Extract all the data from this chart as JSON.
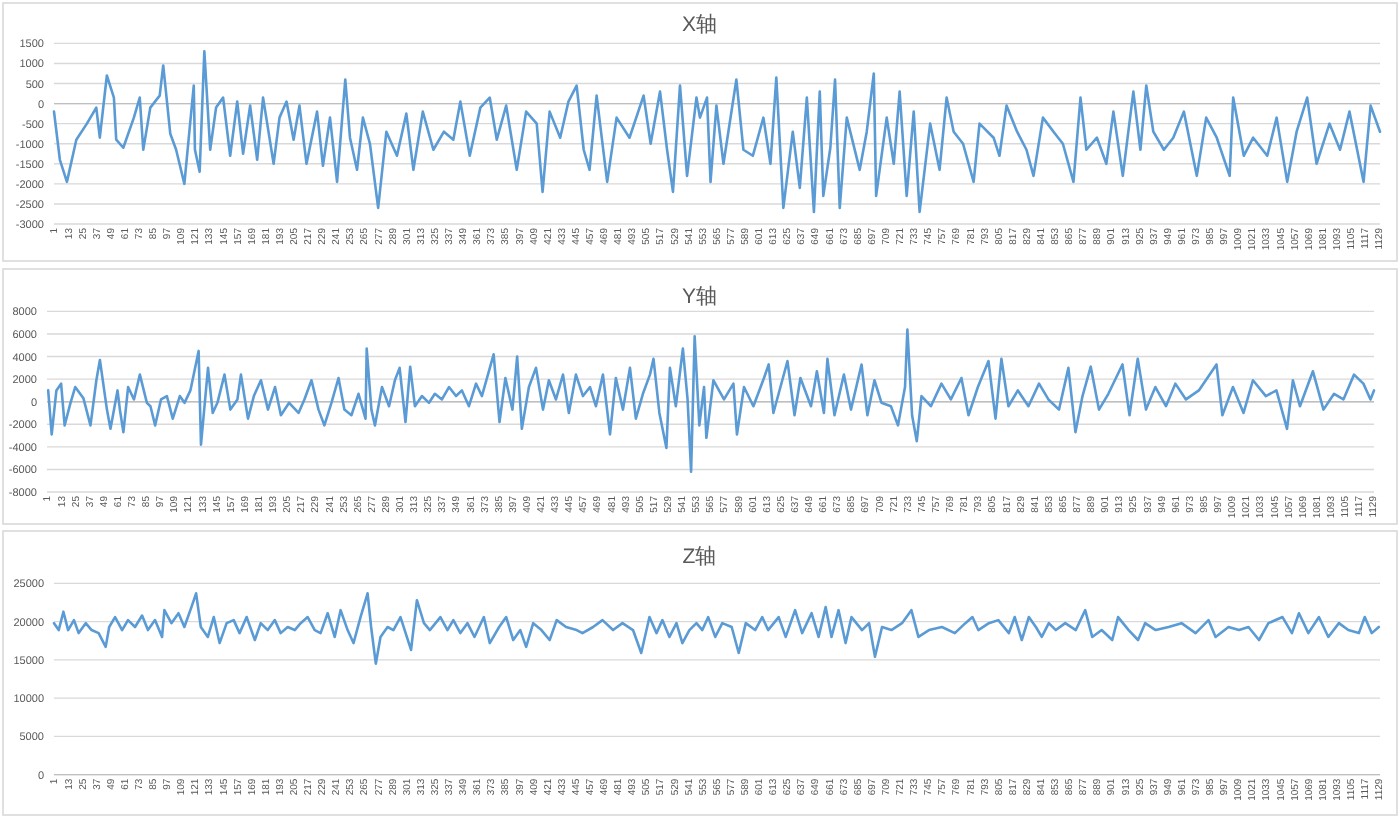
{
  "chart_data": [
    {
      "type": "line",
      "title": "X轴",
      "color": "#5b9bd5",
      "grid": "y",
      "xlim": [
        1,
        1130
      ],
      "ylim": [
        -3000,
        1500
      ],
      "yticks": [
        -3000,
        -2500,
        -2000,
        -1500,
        -1000,
        -500,
        0,
        500,
        1000,
        1500
      ],
      "xticks": [
        1,
        13,
        25,
        37,
        49,
        61,
        73,
        85,
        97,
        109,
        121,
        133,
        145,
        157,
        169,
        181,
        193,
        205,
        217,
        229,
        241,
        253,
        265,
        277,
        289,
        301,
        313,
        325,
        337,
        349,
        361,
        373,
        385,
        397,
        409,
        421,
        433,
        445,
        457,
        469,
        481,
        493,
        505,
        517,
        529,
        541,
        553,
        565,
        577,
        589,
        601,
        613,
        625,
        637,
        649,
        661,
        673,
        685,
        697,
        709,
        721,
        733,
        745,
        757,
        769,
        781,
        793,
        805,
        817,
        829,
        841,
        853,
        865,
        877,
        889,
        901,
        913,
        925,
        937,
        949,
        961,
        973,
        985,
        997,
        1009,
        1021,
        1033,
        1045,
        1057,
        1069,
        1081,
        1093,
        1105,
        1117,
        1129
      ],
      "x": [
        1,
        6,
        12,
        20,
        29,
        37,
        40,
        46,
        52,
        54,
        60,
        69,
        74,
        77,
        83,
        91,
        94,
        100,
        105,
        112,
        120,
        121,
        125,
        129,
        134,
        139,
        145,
        151,
        157,
        162,
        168,
        174,
        179,
        188,
        193,
        199,
        205,
        210,
        216,
        225,
        230,
        236,
        242,
        249,
        253,
        259,
        264,
        270,
        277,
        284,
        293,
        301,
        307,
        315,
        324,
        333,
        341,
        347,
        355,
        364,
        372,
        378,
        386,
        395,
        403,
        412,
        417,
        423,
        432,
        439,
        446,
        452,
        457,
        463,
        472,
        480,
        491,
        503,
        509,
        517,
        523,
        528,
        534,
        540,
        548,
        551,
        557,
        560,
        565,
        571,
        582,
        588,
        596,
        605,
        611,
        616,
        622,
        630,
        636,
        642,
        648,
        653,
        656,
        662,
        666,
        670,
        676,
        687,
        693,
        699,
        701,
        710,
        716,
        721,
        727,
        733,
        738,
        747,
        755,
        761,
        767,
        775,
        784,
        789,
        801,
        806,
        812,
        821,
        829,
        835,
        843,
        852,
        860,
        869,
        875,
        880,
        889,
        897,
        903,
        911,
        920,
        926,
        931,
        937,
        946,
        954,
        963,
        974,
        982,
        991,
        1002,
        1005,
        1014,
        1022,
        1034,
        1042,
        1051,
        1059,
        1068,
        1076,
        1087,
        1096,
        1104,
        1116,
        1122,
        1130
      ],
      "values": [
        -200,
        -1400,
        -1950,
        -900,
        -500,
        -100,
        -850,
        700,
        150,
        -900,
        -1100,
        -350,
        150,
        -1150,
        -100,
        200,
        950,
        -750,
        -1150,
        -2000,
        450,
        -1150,
        -1700,
        1300,
        -1150,
        -100,
        150,
        -1300,
        50,
        -1250,
        -50,
        -1400,
        150,
        -1500,
        -350,
        50,
        -900,
        -50,
        -1500,
        -200,
        -1550,
        -350,
        -1950,
        600,
        -850,
        -1650,
        -350,
        -1000,
        -2600,
        -700,
        -1300,
        -250,
        -1650,
        -200,
        -1150,
        -700,
        -900,
        50,
        -1300,
        -100,
        150,
        -900,
        -50,
        -1650,
        -200,
        -500,
        -2200,
        -200,
        -850,
        50,
        450,
        -1150,
        -1650,
        200,
        -1950,
        -350,
        -850,
        200,
        -1000,
        300,
        -1150,
        -2200,
        450,
        -1800,
        150,
        -350,
        150,
        -1950,
        -50,
        -1500,
        600,
        -1150,
        -1300,
        -350,
        -1500,
        650,
        -2600,
        -700,
        -2100,
        150,
        -2700,
        300,
        -2300,
        -1100,
        600,
        -2600,
        -350,
        -1650,
        -700,
        750,
        -2300,
        -350,
        -1500,
        300,
        -2300,
        -200,
        -2700,
        -500,
        -1650,
        150,
        -700,
        -1000,
        -1950,
        -500,
        -850,
        -1300,
        -50,
        -700,
        -1150,
        -1800,
        -350,
        -700,
        -1000,
        -1950,
        150,
        -1150,
        -850,
        -1500,
        -200,
        -1800,
        300,
        -1150,
        450,
        -700,
        -1150,
        -850,
        -200,
        -1800,
        -350,
        -850,
        -1800,
        150,
        -1300,
        -850,
        -1300,
        -350,
        -1950,
        -700,
        150,
        -1500,
        -500,
        -1150,
        -200,
        -1950,
        -50,
        -700
      ]
    },
    {
      "type": "line",
      "title": "Y轴",
      "color": "#5b9bd5",
      "grid": "y",
      "xlim": [
        1,
        1130
      ],
      "ylim": [
        -8000,
        8000
      ],
      "yticks": [
        -8000,
        -6000,
        -4000,
        -2000,
        0,
        2000,
        4000,
        6000,
        8000
      ],
      "xticks": [
        1,
        13,
        25,
        37,
        49,
        61,
        73,
        85,
        97,
        109,
        121,
        133,
        145,
        157,
        169,
        181,
        193,
        205,
        217,
        229,
        241,
        253,
        265,
        277,
        289,
        301,
        313,
        325,
        337,
        349,
        361,
        373,
        385,
        397,
        409,
        421,
        433,
        445,
        457,
        469,
        481,
        493,
        505,
        517,
        529,
        541,
        553,
        565,
        577,
        589,
        601,
        613,
        625,
        637,
        649,
        661,
        673,
        685,
        697,
        709,
        721,
        733,
        745,
        757,
        769,
        781,
        793,
        805,
        817,
        829,
        841,
        853,
        865,
        877,
        889,
        901,
        913,
        925,
        937,
        949,
        961,
        973,
        985,
        997,
        1009,
        1021,
        1033,
        1045,
        1057,
        1069,
        1081,
        1093,
        1105,
        1117,
        1129
      ],
      "x": [
        2,
        5,
        9,
        13,
        16,
        21,
        25,
        32,
        38,
        43,
        46,
        52,
        55,
        61,
        63,
        66,
        70,
        75,
        80,
        86,
        89,
        93,
        98,
        103,
        108,
        114,
        118,
        123,
        130,
        132,
        138,
        142,
        146,
        152,
        157,
        163,
        166,
        172,
        177,
        183,
        189,
        195,
        200,
        207,
        215,
        220,
        226,
        232,
        237,
        243,
        249,
        254,
        260,
        266,
        272,
        273,
        277,
        280,
        286,
        292,
        297,
        301,
        306,
        310,
        314,
        320,
        326,
        331,
        337,
        343,
        349,
        354,
        360,
        366,
        371,
        381,
        386,
        391,
        397,
        401,
        405,
        411,
        417,
        423,
        428,
        434,
        440,
        445,
        451,
        457,
        463,
        468,
        474,
        480,
        485,
        491,
        497,
        502,
        508,
        514,
        517,
        522,
        528,
        531,
        536,
        542,
        546,
        549,
        552,
        556,
        560,
        562,
        568,
        577,
        585,
        588,
        594,
        602,
        611,
        615,
        619,
        625,
        631,
        637,
        642,
        651,
        656,
        662,
        665,
        671,
        679,
        685,
        694,
        699,
        705,
        711,
        719,
        725,
        731,
        733,
        737,
        741,
        745,
        753,
        762,
        770,
        779,
        785,
        793,
        802,
        808,
        813,
        819,
        827,
        836,
        845,
        853,
        862,
        870,
        876,
        882,
        889,
        896,
        904,
        916,
        922,
        929,
        936,
        944,
        953,
        961,
        970,
        981,
        996,
        1001,
        1010,
        1019,
        1027,
        1038,
        1047,
        1056,
        1061,
        1067,
        1078,
        1087,
        1096,
        1104,
        1113,
        1121,
        1127,
        1130
      ],
      "values": [
        1000,
        -2900,
        1000,
        1600,
        -2100,
        -100,
        1300,
        300,
        -2100,
        1900,
        3700,
        -700,
        -2400,
        1000,
        -700,
        -2700,
        1300,
        200,
        2400,
        -100,
        -400,
        -2100,
        200,
        500,
        -1500,
        500,
        -100,
        1000,
        4500,
        -3800,
        3000,
        -1000,
        -100,
        2400,
        -700,
        200,
        2400,
        -1500,
        500,
        1900,
        -700,
        1300,
        -1200,
        -100,
        -1000,
        200,
        1900,
        -700,
        -2100,
        -100,
        2100,
        -700,
        -1200,
        700,
        -1500,
        4700,
        -700,
        -2100,
        1300,
        -400,
        1900,
        3000,
        -1800,
        3100,
        -400,
        500,
        -100,
        700,
        200,
        1300,
        500,
        1000,
        -400,
        1600,
        500,
        4200,
        -1800,
        2100,
        -700,
        4000,
        -2400,
        1300,
        3000,
        -700,
        1900,
        200,
        2400,
        -1000,
        2400,
        500,
        1300,
        -400,
        2400,
        -2900,
        2100,
        -700,
        3000,
        -1500,
        700,
        2400,
        3800,
        -1000,
        -4100,
        3000,
        -400,
        4700,
        200,
        -6200,
        5800,
        -2100,
        1300,
        -3200,
        1900,
        200,
        1600,
        -2900,
        1300,
        -400,
        2100,
        3300,
        -1000,
        1300,
        3600,
        -1200,
        2100,
        -400,
        2700,
        -1000,
        3800,
        -1200,
        2400,
        -700,
        3300,
        -1200,
        1900,
        -100,
        -400,
        -2100,
        1300,
        6400,
        -1200,
        -3500,
        500,
        -400,
        1600,
        200,
        2100,
        -1200,
        1300,
        3600,
        -1500,
        3800,
        -400,
        1000,
        -400,
        1600,
        200,
        -700,
        3000,
        -2700,
        500,
        3100,
        -700,
        700,
        3300,
        -1200,
        3800,
        -700,
        1300,
        -400,
        1600,
        200,
        1000,
        3300,
        -1200,
        1300,
        -1000,
        1900,
        500,
        1000,
        -2400,
        1900,
        -400,
        2700,
        -700,
        700,
        200,
        2400,
        1600,
        200,
        1000
      ]
    },
    {
      "type": "line",
      "title": "Z轴",
      "color": "#5b9bd5",
      "grid": "y",
      "xlim": [
        1,
        1130
      ],
      "ylim": [
        0,
        25000
      ],
      "yticks": [
        0,
        5000,
        10000,
        15000,
        20000,
        25000
      ],
      "xticks": [
        1,
        13,
        25,
        37,
        49,
        61,
        73,
        85,
        97,
        109,
        121,
        133,
        145,
        157,
        169,
        181,
        193,
        205,
        217,
        229,
        241,
        253,
        265,
        277,
        289,
        301,
        313,
        325,
        337,
        349,
        361,
        373,
        385,
        397,
        409,
        421,
        433,
        445,
        457,
        469,
        481,
        493,
        505,
        517,
        529,
        541,
        553,
        565,
        577,
        589,
        601,
        613,
        625,
        637,
        649,
        661,
        673,
        685,
        697,
        709,
        721,
        733,
        745,
        757,
        769,
        781,
        793,
        805,
        817,
        829,
        841,
        853,
        865,
        877,
        889,
        901,
        913,
        925,
        937,
        949,
        961,
        973,
        985,
        997,
        1009,
        1021,
        1033,
        1045,
        1057,
        1069,
        1081,
        1093,
        1105,
        1117,
        1129
      ],
      "x": [
        1,
        5,
        9,
        13,
        18,
        22,
        28,
        33,
        39,
        45,
        48,
        53,
        59,
        64,
        70,
        76,
        81,
        87,
        93,
        95,
        101,
        107,
        112,
        118,
        122,
        126,
        132,
        137,
        142,
        148,
        154,
        159,
        165,
        172,
        177,
        183,
        189,
        194,
        200,
        206,
        211,
        217,
        223,
        228,
        234,
        240,
        245,
        251,
        256,
        262,
        268,
        271,
        275,
        279,
        285,
        290,
        296,
        305,
        310,
        316,
        321,
        330,
        336,
        341,
        347,
        353,
        359,
        367,
        372,
        380,
        386,
        392,
        398,
        403,
        409,
        416,
        423,
        429,
        437,
        446,
        451,
        460,
        468,
        477,
        485,
        494,
        501,
        508,
        514,
        519,
        525,
        531,
        536,
        542,
        548,
        553,
        558,
        564,
        570,
        578,
        584,
        590,
        598,
        604,
        609,
        618,
        624,
        632,
        638,
        646,
        652,
        658,
        663,
        669,
        675,
        680,
        689,
        695,
        700,
        706,
        714,
        723,
        731,
        737,
        746,
        757,
        768,
        777,
        783,
        788,
        797,
        805,
        814,
        819,
        825,
        831,
        837,
        842,
        848,
        854,
        862,
        871,
        879,
        885,
        893,
        902,
        907,
        916,
        924,
        930,
        939,
        950,
        961,
        973,
        984,
        990,
        1001,
        1010,
        1018,
        1027,
        1035,
        1047,
        1055,
        1061,
        1069,
        1078,
        1086,
        1095,
        1103,
        1112,
        1117,
        1123,
        1129
      ],
      "values": [
        19800,
        18900,
        21300,
        18900,
        20200,
        18500,
        19800,
        18900,
        18500,
        16700,
        19300,
        20600,
        18900,
        20200,
        19300,
        20800,
        18900,
        20200,
        18000,
        21500,
        19800,
        21100,
        19300,
        21900,
        23700,
        19300,
        18000,
        20600,
        17200,
        19800,
        20200,
        18500,
        20600,
        17600,
        19800,
        18900,
        20200,
        18500,
        19300,
        18900,
        19800,
        20600,
        18900,
        18500,
        21100,
        18000,
        21500,
        18900,
        17200,
        20600,
        23700,
        19300,
        14500,
        18000,
        19300,
        18900,
        20600,
        16300,
        22800,
        19800,
        18900,
        20600,
        18900,
        20200,
        18500,
        19800,
        18000,
        20600,
        17200,
        19300,
        20600,
        17600,
        18900,
        16700,
        19800,
        18900,
        17600,
        20200,
        19300,
        18900,
        18500,
        19300,
        20200,
        18900,
        19800,
        18900,
        15900,
        20600,
        18500,
        20200,
        18000,
        19800,
        17200,
        18900,
        19800,
        18900,
        20600,
        18000,
        19800,
        19300,
        15900,
        19800,
        18900,
        20600,
        18900,
        20600,
        18000,
        21500,
        18500,
        21100,
        18000,
        21900,
        18000,
        21500,
        17200,
        20600,
        18900,
        19800,
        15400,
        19300,
        18900,
        19800,
        21500,
        18000,
        18900,
        19300,
        18500,
        19800,
        20600,
        18900,
        19800,
        20200,
        18500,
        20600,
        17600,
        20600,
        19300,
        18000,
        19800,
        18900,
        19800,
        18900,
        21500,
        18000,
        18900,
        17600,
        20600,
        18900,
        17600,
        19800,
        18900,
        19300,
        19800,
        18500,
        20200,
        18000,
        19300,
        18900,
        19300,
        17600,
        19800,
        20600,
        18500,
        21100,
        18500,
        20600,
        18000,
        19800,
        18900,
        18500,
        20600,
        18500,
        19300
      ]
    }
  ]
}
